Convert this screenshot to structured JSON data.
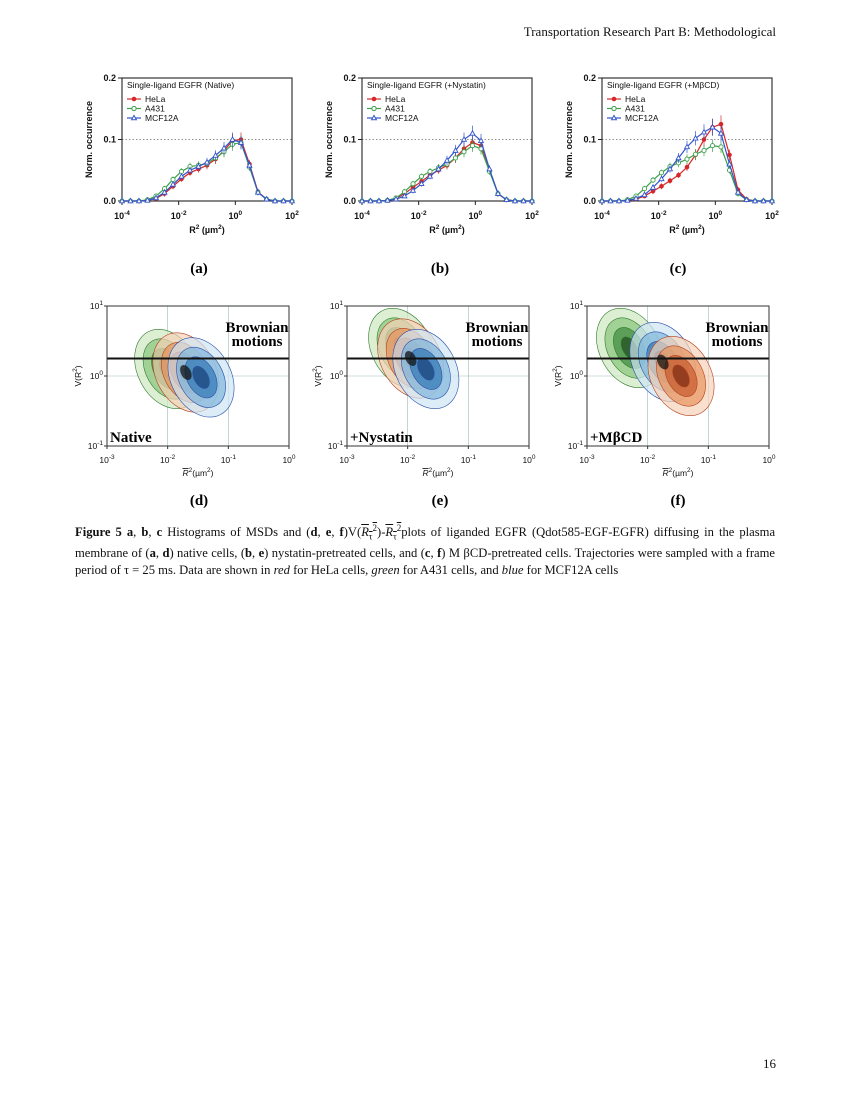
{
  "header": {
    "journal": "Transportation Research Part B: Methodological"
  },
  "page_number": "16",
  "colors": {
    "hela": "#d62728",
    "a431": "#3aa04a",
    "mcf12a": "#3355cc"
  },
  "chart_data": [
    {
      "type": "line",
      "panel": "(a)",
      "title": "Single-ligand EGFR (Native)",
      "xlabel": "R2 (µm2)",
      "ylabel": "Norm. occurrence",
      "x_log10": [
        -4.0,
        -3.7,
        -3.4,
        -3.1,
        -2.8,
        -2.5,
        -2.2,
        -1.9,
        -1.6,
        -1.3,
        -1.0,
        -0.7,
        -0.4,
        -0.1,
        0.2,
        0.5,
        0.8,
        1.1,
        1.4,
        1.7,
        2.0
      ],
      "xlim_log10": [
        -4,
        2
      ],
      "ylim": [
        0,
        0.2
      ],
      "xticks": [
        "10-4",
        "10-2",
        "100",
        "102"
      ],
      "yticks": [
        "0.0",
        "0.1",
        "0.2"
      ],
      "series": [
        {
          "name": "HeLa",
          "values": [
            0.0,
            0.0,
            0.0,
            0.001,
            0.004,
            0.012,
            0.024,
            0.036,
            0.046,
            0.052,
            0.058,
            0.068,
            0.082,
            0.098,
            0.1,
            0.06,
            0.015,
            0.003,
            0.0,
            0.0,
            0.0
          ]
        },
        {
          "name": "A431",
          "values": [
            0.0,
            0.0,
            0.0,
            0.002,
            0.008,
            0.02,
            0.035,
            0.048,
            0.056,
            0.058,
            0.061,
            0.07,
            0.08,
            0.092,
            0.095,
            0.055,
            0.014,
            0.003,
            0.0,
            0.0,
            0.0
          ]
        },
        {
          "name": "MCF12A",
          "values": [
            0.0,
            0.0,
            0.0,
            0.001,
            0.005,
            0.014,
            0.027,
            0.04,
            0.05,
            0.056,
            0.063,
            0.074,
            0.086,
            0.1,
            0.095,
            0.058,
            0.014,
            0.003,
            0.0,
            0.0,
            0.0
          ]
        }
      ]
    },
    {
      "type": "line",
      "panel": "(b)",
      "title": "Single-ligand EGFR (+Nystatin)",
      "xlabel": "R2 (µm2)",
      "ylabel": "Norm. occurrence",
      "x_log10": [
        -4.0,
        -3.7,
        -3.4,
        -3.1,
        -2.8,
        -2.5,
        -2.2,
        -1.9,
        -1.6,
        -1.3,
        -1.0,
        -0.7,
        -0.4,
        -0.1,
        0.2,
        0.5,
        0.8,
        1.1,
        1.4,
        1.7,
        2.0
      ],
      "xlim_log10": [
        -4,
        2
      ],
      "ylim": [
        0,
        0.2
      ],
      "xticks": [
        "10-4",
        "10-2",
        "100",
        "102"
      ],
      "yticks": [
        "0.0",
        "0.1",
        "0.2"
      ],
      "series": [
        {
          "name": "HeLa",
          "values": [
            0.0,
            0.0,
            0.0,
            0.001,
            0.004,
            0.012,
            0.022,
            0.032,
            0.042,
            0.05,
            0.058,
            0.07,
            0.085,
            0.095,
            0.09,
            0.05,
            0.012,
            0.002,
            0.0,
            0.0,
            0.0
          ]
        },
        {
          "name": "A431",
          "values": [
            0.0,
            0.0,
            0.0,
            0.001,
            0.005,
            0.015,
            0.028,
            0.04,
            0.048,
            0.054,
            0.06,
            0.07,
            0.08,
            0.09,
            0.085,
            0.048,
            0.012,
            0.002,
            0.0,
            0.0,
            0.0
          ]
        },
        {
          "name": "MCF12A",
          "values": [
            0.0,
            0.0,
            0.0,
            0.001,
            0.003,
            0.008,
            0.017,
            0.028,
            0.04,
            0.052,
            0.066,
            0.082,
            0.1,
            0.11,
            0.098,
            0.052,
            0.012,
            0.002,
            0.0,
            0.0,
            0.0
          ]
        }
      ]
    },
    {
      "type": "line",
      "panel": "(c)",
      "title": "Single-ligand EGFR (+MβCD)",
      "xlabel": "R2 (µm2)",
      "ylabel": "Norm. occurrence",
      "x_log10": [
        -4.0,
        -3.7,
        -3.4,
        -3.1,
        -2.8,
        -2.5,
        -2.2,
        -1.9,
        -1.6,
        -1.3,
        -1.0,
        -0.7,
        -0.4,
        -0.1,
        0.2,
        0.5,
        0.8,
        1.1,
        1.4,
        1.7,
        2.0
      ],
      "xlim_log10": [
        -4,
        2
      ],
      "ylim": [
        0,
        0.2
      ],
      "xticks": [
        "10-4",
        "10-2",
        "100",
        "102"
      ],
      "yticks": [
        "0.0",
        "0.1",
        "0.2"
      ],
      "series": [
        {
          "name": "HeLa",
          "values": [
            0.0,
            0.0,
            0.0,
            0.001,
            0.003,
            0.008,
            0.016,
            0.024,
            0.033,
            0.042,
            0.055,
            0.075,
            0.1,
            0.12,
            0.125,
            0.075,
            0.018,
            0.003,
            0.0,
            0.0,
            0.0
          ]
        },
        {
          "name": "A431",
          "values": [
            0.0,
            0.0,
            0.0,
            0.002,
            0.008,
            0.02,
            0.034,
            0.046,
            0.056,
            0.062,
            0.068,
            0.076,
            0.082,
            0.09,
            0.088,
            0.05,
            0.012,
            0.002,
            0.0,
            0.0,
            0.0
          ]
        },
        {
          "name": "MCF12A",
          "values": [
            0.0,
            0.0,
            0.0,
            0.001,
            0.004,
            0.01,
            0.022,
            0.036,
            0.052,
            0.07,
            0.088,
            0.102,
            0.112,
            0.12,
            0.11,
            0.06,
            0.014,
            0.002,
            0.0,
            0.0,
            0.0
          ]
        }
      ]
    },
    {
      "type": "heatmap",
      "panel": "(d)",
      "condition": "Native",
      "annotation": "Brownian motions",
      "xticks": [
        "10-3",
        "10-2",
        "10-1",
        "100"
      ],
      "yticks": [
        "101",
        "100",
        "10-1"
      ],
      "ylabel": "V(R2)",
      "xlabel": "R2(µm2)",
      "brownian_line_log10": 0.25,
      "peaks_log10": [
        {
          "cell": "A431",
          "x": -2.0,
          "y": 0.1
        },
        {
          "cell": "HeLa",
          "x": -1.7,
          "y": 0.05
        },
        {
          "cell": "MCF12A",
          "x": -1.45,
          "y": -0.02
        }
      ]
    },
    {
      "type": "heatmap",
      "panel": "(e)",
      "condition": "+Nystatin",
      "annotation": "Brownian motions",
      "xticks": [
        "10-3",
        "10-2",
        "10-1",
        "100"
      ],
      "yticks": [
        "101",
        "100",
        "10-1"
      ],
      "ylabel": "V(R2)",
      "xlabel": "R2(µm2)",
      "brownian_line_log10": 0.25,
      "peaks_log10": [
        {
          "cell": "A431",
          "x": -2.1,
          "y": 0.4
        },
        {
          "cell": "HeLa",
          "x": -1.95,
          "y": 0.25
        },
        {
          "cell": "MCF12A",
          "x": -1.7,
          "y": 0.1
        }
      ]
    },
    {
      "type": "heatmap",
      "panel": "(f)",
      "condition": "+MβCD",
      "annotation": "Brownian motions",
      "xticks": [
        "10-3",
        "10-2",
        "10-1",
        "100"
      ],
      "yticks": [
        "101",
        "100",
        "10-1"
      ],
      "ylabel": "V(R2)",
      "xlabel": "R2(µm2)",
      "brownian_line_log10": 0.25,
      "peaks_log10": [
        {
          "cell": "A431",
          "x": -2.3,
          "y": 0.4
        },
        {
          "cell": "MCF12A",
          "x": -1.75,
          "y": 0.2
        },
        {
          "cell": "HeLa",
          "x": -1.45,
          "y": 0.0
        }
      ]
    }
  ],
  "caption": {
    "label": "Figure 5",
    "p_a": "a",
    "p_b": "b",
    "p_c": "c",
    "t1": "Histograms of MSDs and (",
    "p_d": "d",
    "p_e": "e",
    "p_f": "f",
    "t2": ")V(",
    "t3": ")-",
    "t4": "plots of liganded EGFR (Qdot585-EGF-EGFR) diffusing in the plasma membrane of (",
    "t5": ") native cells, (",
    "t6": ") nystatin-pretreated cells, and (",
    "t7": ") M βCD-pretreated cells.  Trajectories were sampled with a frame period of τ = 25 ms.  Data are shown in ",
    "red": "red",
    "t8": "for HeLa cells,",
    "green": "green",
    "t9": "for A431 cells, and",
    "blue": "blue",
    "t10": "for MCF12A cells",
    "sym": "R",
    "sub": "τ",
    "sup": "2"
  }
}
